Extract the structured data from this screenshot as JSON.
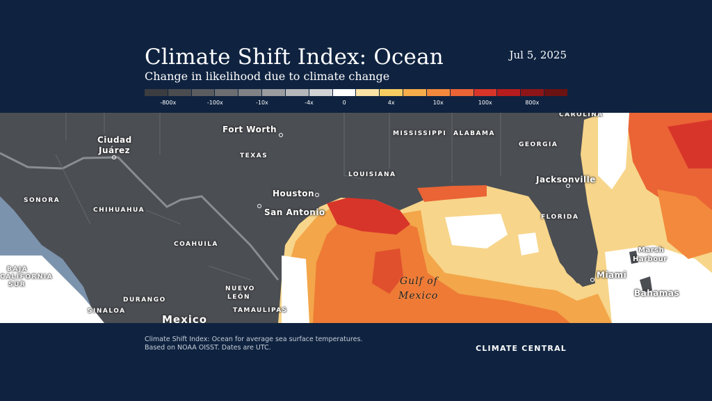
{
  "header": {
    "title": "Climate Shift Index: Ocean",
    "subtitle": "Change in likelihood due to climate change",
    "date": "Jul 5, 2025"
  },
  "legend": {
    "colors": [
      "#3b3d40",
      "#4a4c4f",
      "#5a5c60",
      "#6c6e72",
      "#808285",
      "#9a9c9f",
      "#b5b7ba",
      "#d1d3d5",
      "#ffffff",
      "#fbe3a6",
      "#f7cd62",
      "#f6ad4a",
      "#f3893c",
      "#ea6435",
      "#d8352a",
      "#b51c1e",
      "#8e1518",
      "#6b1212"
    ],
    "tick_labels": [
      "-800x",
      "-100x",
      "-10x",
      "-4x",
      "0",
      "4x",
      "10x",
      "100x",
      "800x"
    ]
  },
  "map": {
    "sea_label": [
      "Gulf of",
      "Mexico"
    ],
    "country_label": "Mexico",
    "states": [
      "SONORA",
      "CHIHUAHUA",
      "COAHUILA",
      "DURANGO",
      "SINALOA",
      "NUEVO",
      "LEÓN",
      "TAMAULIPAS",
      "TEXAS",
      "LOUISIANA",
      "MISSISSIPPI",
      "ALABAMA",
      "GEORGIA",
      "FLORIDA",
      "CAROLINA",
      "BAJA",
      "CALIFORNIA",
      "SUR"
    ],
    "cities": [
      "Ciudad",
      "Juárez",
      "Fort Worth",
      "Houston",
      "San Antonio",
      "Jacksonville",
      "Miami",
      "Marsh",
      "Harbour",
      "Bahamas"
    ]
  },
  "footer": {
    "note_line1": "Climate Shift Index: Ocean for average sea surface temperatures.",
    "note_line2": "Based on NOAA OISST. Dates are UTC.",
    "brand": "CLIMATE CENTRAL"
  }
}
